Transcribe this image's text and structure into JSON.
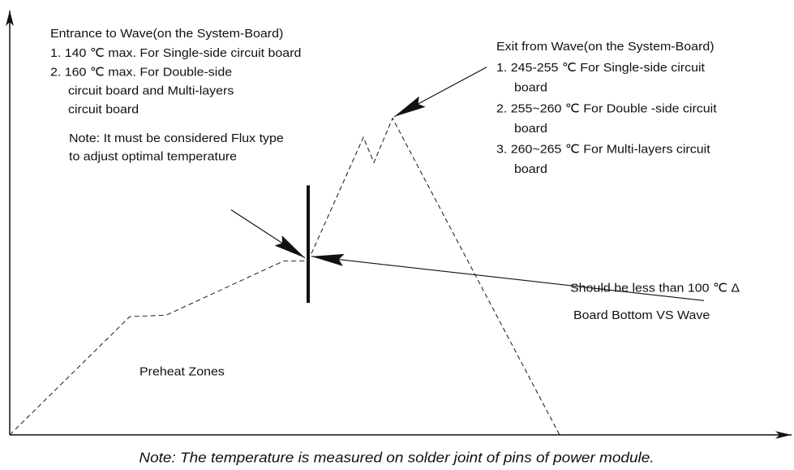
{
  "entrance": {
    "title": "Entrance to Wave(on the System-Board)",
    "items": [
      [
        "1. 140 ℃ max. For Single-side circuit board"
      ],
      [
        "2. 160 ℃ max. For Double-side",
        "circuit board and Multi-layers",
        "circuit board"
      ]
    ]
  },
  "flux_note": [
    "Note: It must be considered Flux type",
    "to adjust optimal temperature"
  ],
  "exit": {
    "title": "Exit from Wave(on the System-Board)",
    "items": [
      [
        "1. 245-255 ℃ For Single-side circuit",
        "board"
      ],
      [
        "2. 255~260 ℃ For Double -side circuit",
        "board"
      ],
      [
        "3. 260~265 ℃ For Multi-layers circuit",
        "board"
      ]
    ]
  },
  "delta_note": "Should be less than 100 ℃ Δ",
  "board_label": "Board Bottom VS Wave",
  "preheat_label": "Preheat Zones",
  "footer": "Note: The temperature is measured on solder joint of pins of power module."
}
